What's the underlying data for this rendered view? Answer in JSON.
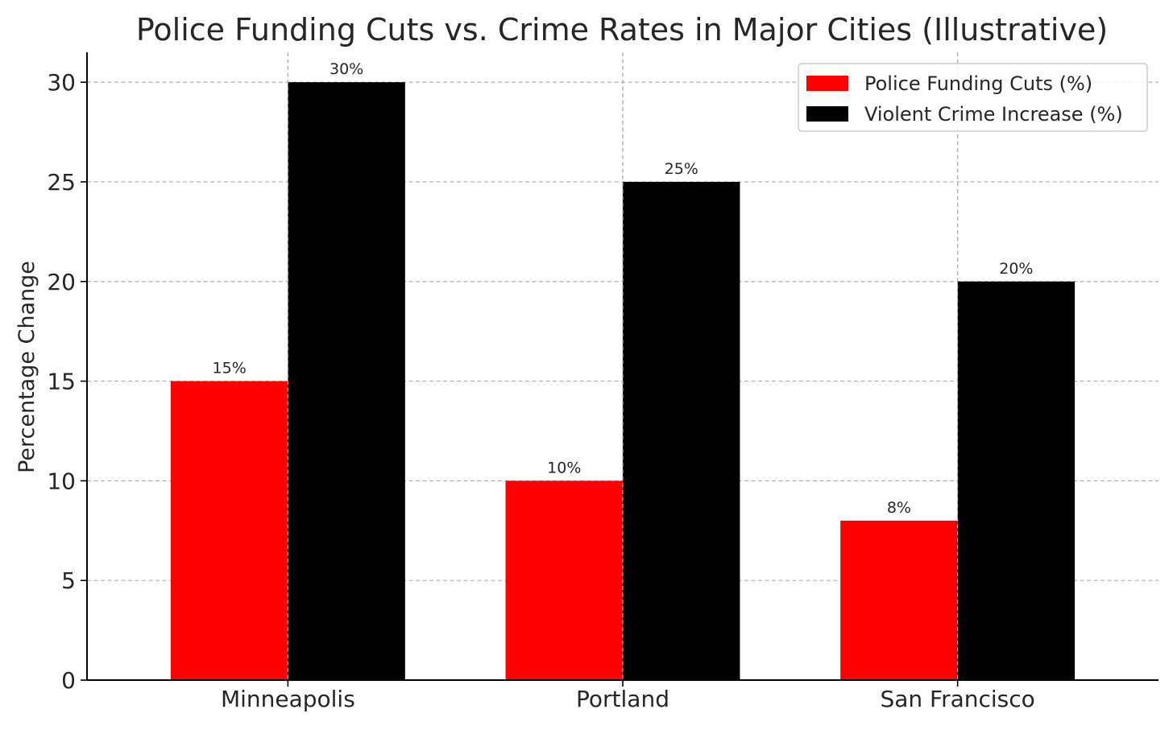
{
  "chart_data": {
    "type": "bar",
    "title": "Police Funding Cuts vs. Crime Rates in Major Cities (Illustrative)",
    "xlabel": "",
    "ylabel": "Percentage Change",
    "categories": [
      "Minneapolis",
      "Portland",
      "San Francisco"
    ],
    "series": [
      {
        "name": "Police Funding Cuts (%)",
        "color": "#ff0000",
        "values": [
          15,
          10,
          8
        ],
        "labels": [
          "15%",
          "10%",
          "8%"
        ]
      },
      {
        "name": "Violent Crime Increase (%)",
        "color": "#000000",
        "values": [
          30,
          25,
          20
        ],
        "labels": [
          "30%",
          "25%",
          "20%"
        ]
      }
    ],
    "ylim": [
      0,
      31.5
    ],
    "yticks": [
      0,
      5,
      10,
      15,
      20,
      25,
      30
    ],
    "grid": true,
    "legend": "top-right"
  }
}
